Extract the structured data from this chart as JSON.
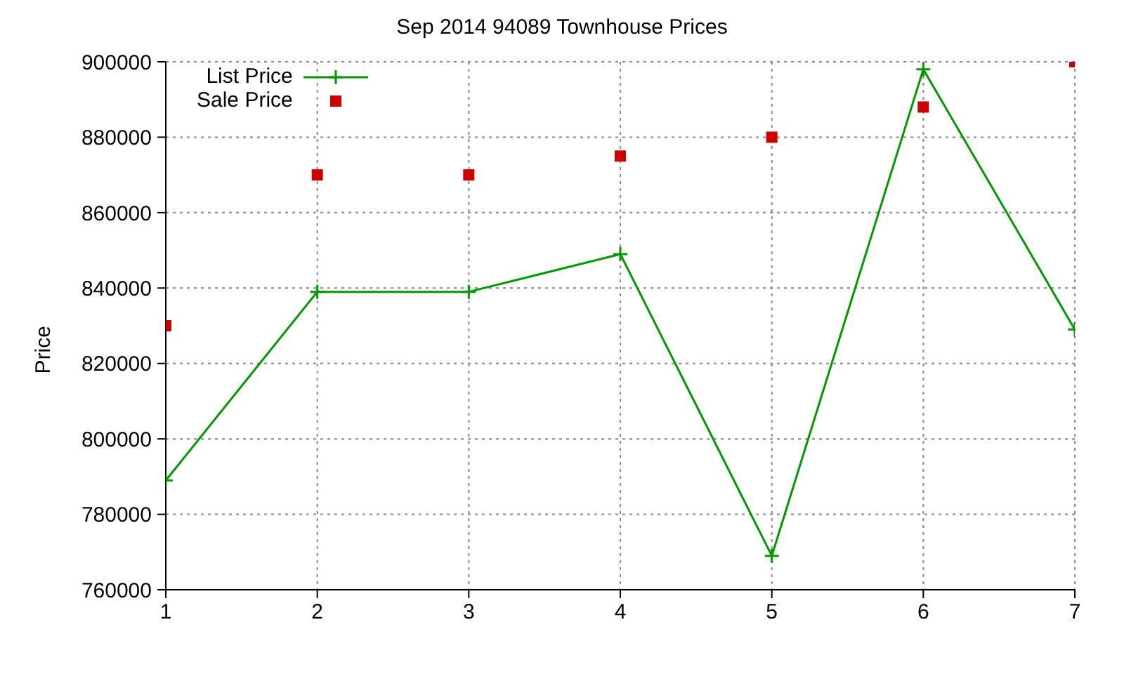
{
  "chart_data": {
    "type": "line",
    "title": "Sep 2014 94089 Townhouse Prices",
    "ylabel": "Price",
    "x": [
      1,
      2,
      3,
      4,
      5,
      6,
      7
    ],
    "series": [
      {
        "name": "List Price",
        "color": "#009900",
        "marker": "cross",
        "values": [
          789000,
          839000,
          839000,
          849000,
          769000,
          898000,
          829000
        ]
      },
      {
        "name": "Sale Price",
        "type": "scatter",
        "color": "#cc0000",
        "marker": "square",
        "values": [
          830000,
          870000,
          870000,
          875000,
          880000,
          888000,
          900000
        ]
      }
    ],
    "xlim": [
      1,
      7
    ],
    "xticks": [
      1,
      2,
      3,
      4,
      5,
      6,
      7
    ],
    "ylim": [
      760000,
      900000
    ],
    "yticks": [
      760000,
      780000,
      800000,
      820000,
      840000,
      860000,
      880000,
      900000
    ],
    "grid": true,
    "legend": "top left"
  }
}
